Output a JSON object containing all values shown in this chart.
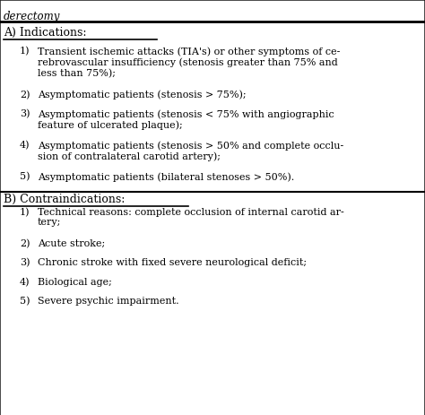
{
  "header_italic": "derectomy",
  "section_a_title": "A) Indications:",
  "section_b_title": "B) Contraindications:",
  "indications": [
    [
      "1)",
      "Transient ischemic attacks (TIA's) or other symptoms of ce-\nrebrovascular insufficiency (stenosis greater than 75% and\nless than 75%);"
    ],
    [
      "2)",
      "Asymptomatic patients (stenosis > 75%);"
    ],
    [
      "3)",
      "Asymptomatic patients (stenosis < 75% with angiographic\nfeature of ulcerated plaque);"
    ],
    [
      "4)",
      "Asymptomatic patients (stenosis > 50% and complete occlu-\nsion of contralateral carotid artery);"
    ],
    [
      "5)",
      "Asymptomatic patients (bilateral stenoses > 50%)."
    ]
  ],
  "contraindications": [
    [
      "1)",
      "Technical reasons: complete occlusion of internal carotid ar-\ntery;"
    ],
    [
      "2)",
      "Acute stroke;"
    ],
    [
      "3)",
      "Chronic stroke with fixed severe neurological deficit;"
    ],
    [
      "4)",
      "Biological age;"
    ],
    [
      "5)",
      "Severe psychic impairment."
    ]
  ],
  "font_size": 8.0,
  "section_font_size": 9.0,
  "header_font_size": 8.5
}
